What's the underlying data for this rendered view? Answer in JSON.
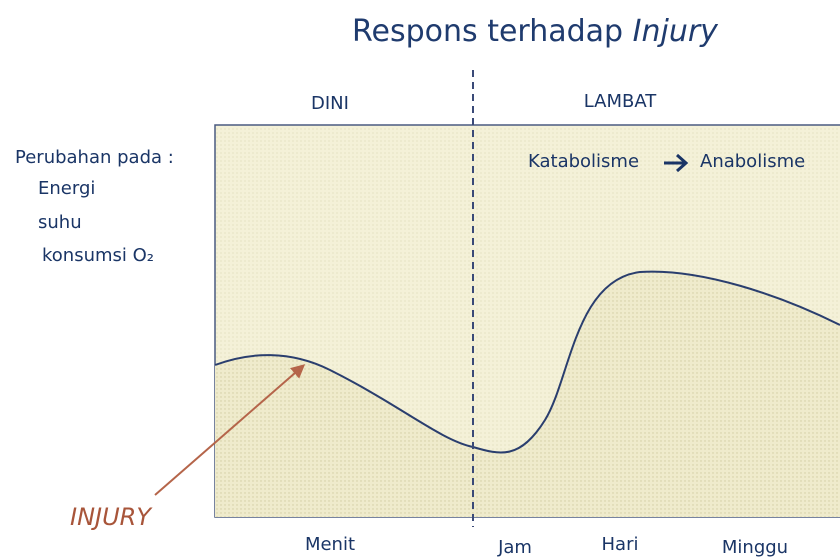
{
  "title": {
    "text": "Respons terhadap ",
    "emphasis": "Injury"
  },
  "phases": [
    "DINI",
    "LAMBAT"
  ],
  "y_label": [
    "Perubahan pada :",
    "Energi",
    "suhu",
    "konsumsi O₂"
  ],
  "annotation": {
    "from": "Katabolisme",
    "to": "Anabolisme"
  },
  "event": "INJURY",
  "x_labels": [
    "Menit",
    "Jam",
    "Hari",
    "Minggu"
  ]
}
